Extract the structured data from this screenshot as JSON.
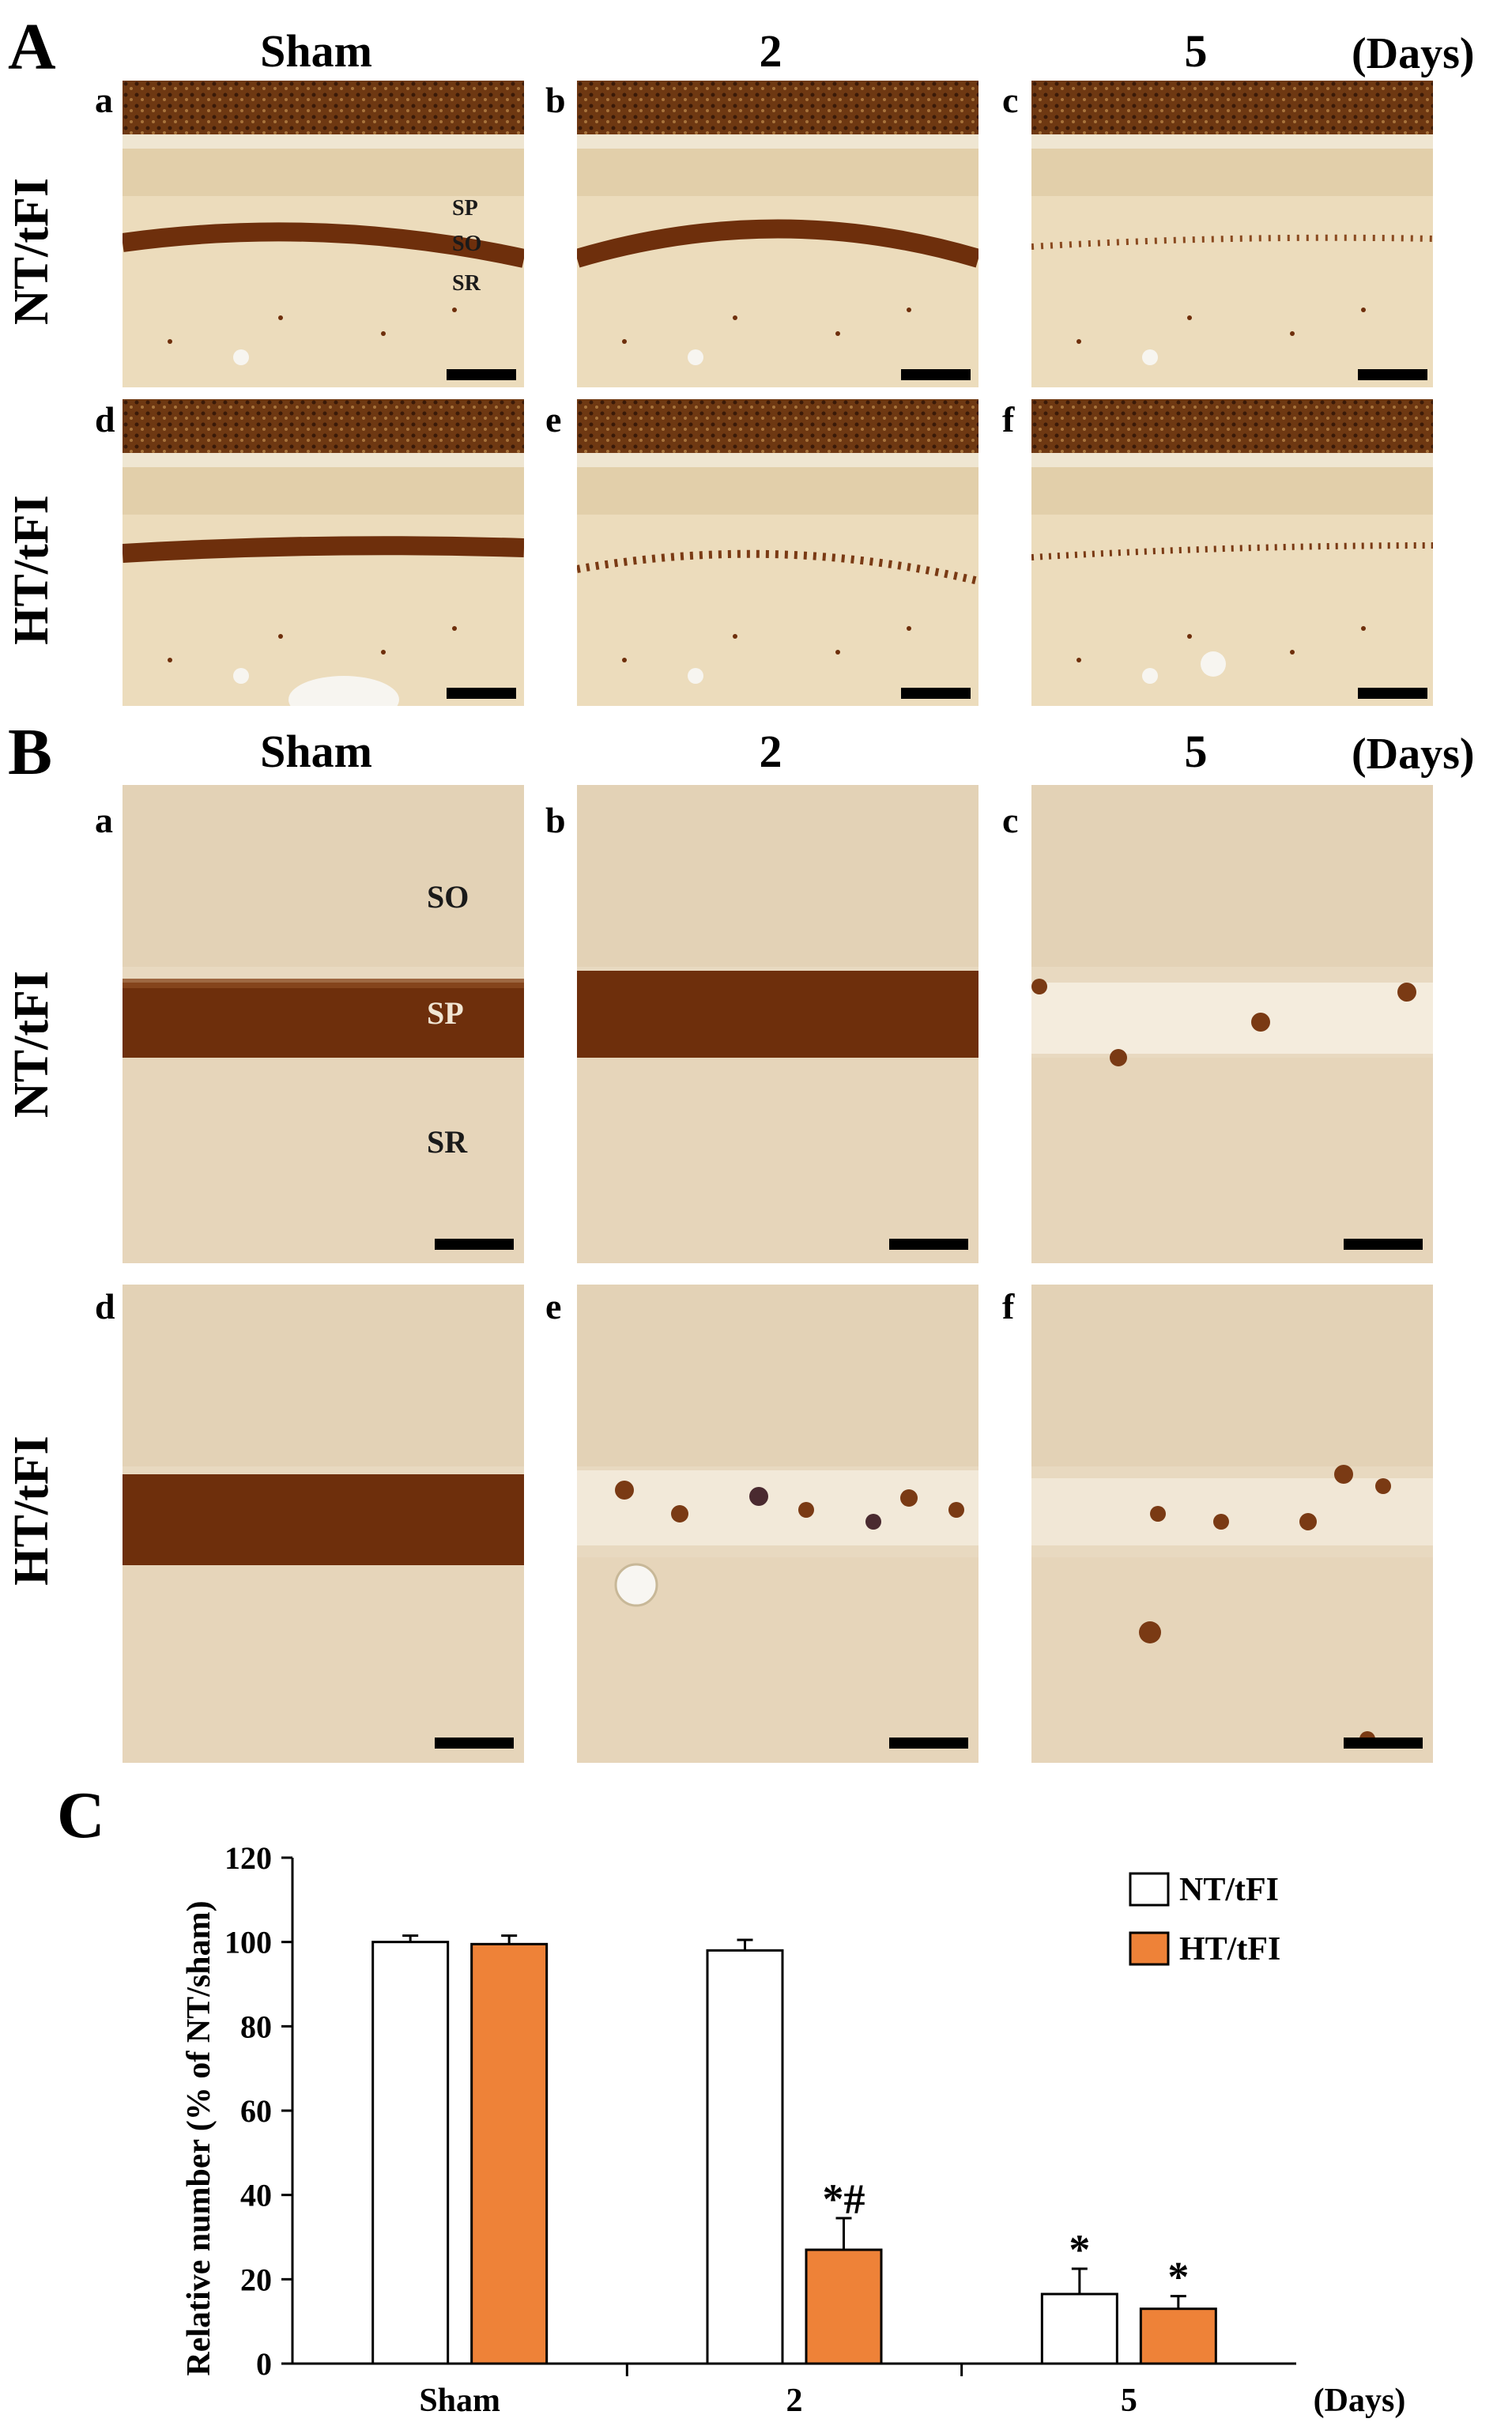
{
  "panelA": {
    "letter": "A",
    "columns": [
      "Sham",
      "2",
      "5"
    ],
    "days_label": "(Days)",
    "rows": [
      "NT/tFI",
      "HT/tFI"
    ],
    "sub": [
      "a",
      "b",
      "c",
      "d",
      "e",
      "f"
    ],
    "layers": [
      "SP",
      "SO",
      "SR"
    ]
  },
  "panelB": {
    "letter": "B",
    "columns": [
      "Sham",
      "2",
      "5"
    ],
    "days_label": "(Days)",
    "rows": [
      "NT/tFI",
      "HT/tFI"
    ],
    "sub": [
      "a",
      "b",
      "c",
      "d",
      "e",
      "f"
    ],
    "layers": [
      "SO",
      "SP",
      "SR"
    ]
  },
  "panelC": {
    "letter": "C"
  },
  "chart_data": {
    "type": "bar",
    "categories": [
      "Sham",
      "2",
      "5"
    ],
    "xlabel": "(Days)",
    "ylabel": "Relative number (% of NT/sham)",
    "ylim": [
      0,
      120
    ],
    "yticks": [
      "0",
      "20",
      "40",
      "60",
      "80",
      "100",
      "120"
    ],
    "legend_position": "top-right",
    "series": [
      {
        "name": "NT/tFI",
        "values": [
          100,
          98,
          16.5
        ],
        "errors": [
          1.5,
          2.5,
          6
        ],
        "color": "#ffffff",
        "annotations": [
          "",
          "",
          "*"
        ]
      },
      {
        "name": "HT/tFI",
        "values": [
          99.5,
          27,
          13
        ],
        "errors": [
          2,
          7.5,
          3
        ],
        "color": "#ee8238",
        "annotations": [
          "",
          "*#",
          "*"
        ]
      }
    ]
  },
  "colors": {
    "tissue_bg": "#ecdcbc",
    "tissue_dark": "#6e2f0c",
    "accent_bar": "#ee8238"
  }
}
